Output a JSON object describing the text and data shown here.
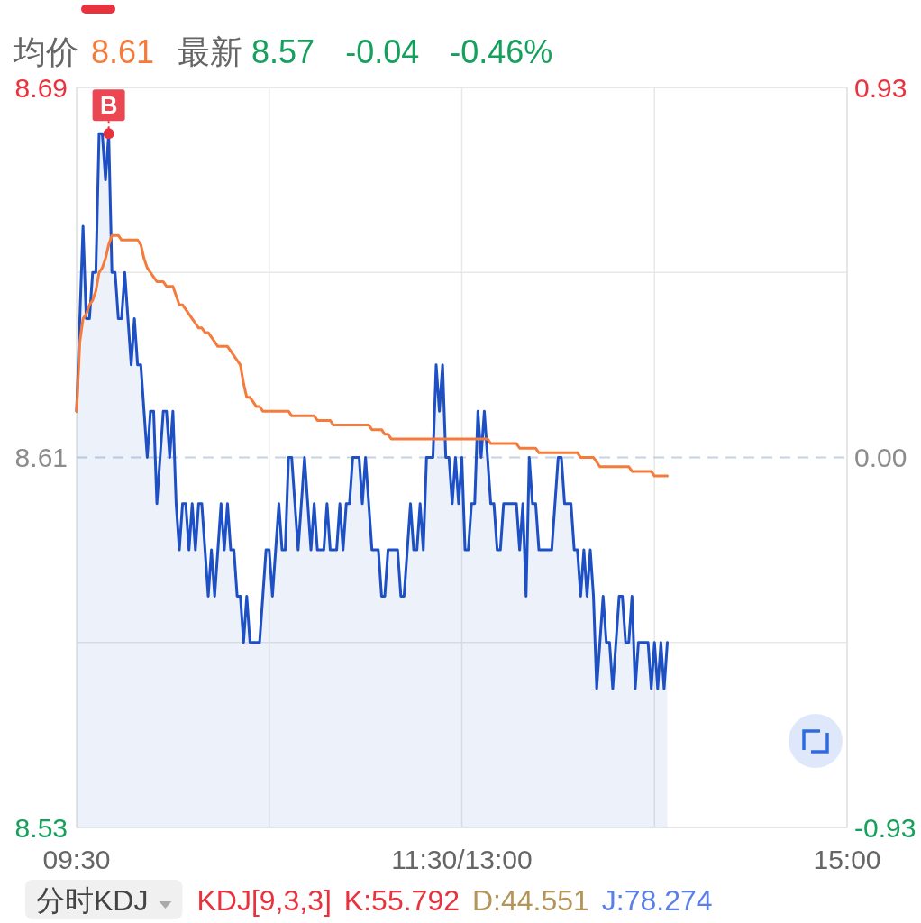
{
  "chart_data": {
    "type": "line",
    "categories": [
      "09:30",
      null,
      null,
      null,
      null,
      null,
      null,
      null,
      null,
      null,
      null,
      null,
      null,
      null,
      null,
      null,
      null,
      null,
      null,
      null,
      null,
      null,
      null,
      null,
      null,
      null,
      null,
      null,
      null,
      null,
      null,
      null,
      null,
      null,
      null,
      null,
      null,
      null,
      null,
      null,
      null,
      null,
      null,
      null,
      null,
      null,
      null,
      null,
      null,
      null,
      null,
      null,
      null,
      null,
      null,
      null,
      null,
      null,
      null,
      null,
      null,
      null,
      null,
      null,
      null,
      null,
      null,
      null,
      null,
      null,
      null,
      null,
      null,
      null,
      null,
      null,
      null,
      null,
      null,
      null,
      null,
      null,
      null,
      null,
      null,
      null,
      null,
      null,
      null,
      null,
      null,
      null,
      null,
      null,
      null,
      null,
      null,
      null,
      null,
      null,
      null,
      null,
      null,
      null,
      null,
      null,
      null,
      null,
      null,
      null,
      null,
      null,
      null,
      null,
      null,
      null,
      null,
      null,
      null,
      null,
      "11:30/13:00",
      null,
      null,
      null,
      null,
      null,
      null,
      null,
      null,
      null,
      null,
      null,
      null,
      null,
      null,
      null,
      null,
      null,
      null,
      null,
      null,
      null,
      null,
      null,
      null,
      null,
      null,
      null,
      null,
      null,
      null,
      null,
      null,
      null,
      null,
      null,
      null,
      null,
      null,
      null,
      null,
      null,
      null,
      null,
      null,
      null,
      null,
      null,
      null,
      null,
      null,
      null,
      null,
      null,
      null,
      null,
      null,
      null,
      null,
      null,
      null,
      null,
      null,
      null,
      null,
      null,
      null,
      null,
      null,
      null,
      null,
      null,
      null,
      null,
      null,
      null,
      null,
      null,
      null,
      null,
      null,
      null,
      null,
      null,
      null,
      null,
      null,
      null,
      null,
      null,
      null,
      null,
      null,
      null,
      null,
      null,
      null,
      null,
      null,
      null,
      null,
      null,
      null,
      null,
      null,
      null,
      null,
      null,
      null,
      null,
      null,
      null,
      null,
      null,
      null,
      null,
      null,
      null,
      null,
      null,
      "15:00"
    ],
    "series": [
      {
        "type": "area",
        "color": "#1d50c4",
        "values": [
          8.62,
          8.64,
          8.66,
          8.64,
          8.64,
          8.65,
          8.65,
          8.68,
          8.68,
          8.67,
          8.68,
          8.65,
          8.65,
          8.64,
          8.64,
          8.65,
          8.64,
          8.63,
          8.64,
          8.63,
          8.63,
          8.62,
          8.61,
          8.62,
          8.62,
          8.6,
          8.61,
          8.62,
          8.62,
          8.61,
          8.62,
          8.6,
          8.59,
          8.6,
          8.6,
          8.59,
          8.6,
          8.59,
          8.6,
          8.6,
          8.59,
          8.58,
          8.59,
          8.58,
          8.59,
          8.6,
          8.59,
          8.6,
          8.59,
          8.59,
          8.58,
          8.58,
          8.57,
          8.58,
          8.57,
          8.57,
          8.57,
          8.57,
          8.58,
          8.59,
          8.59,
          8.58,
          8.59,
          8.6,
          8.59,
          8.59,
          8.61,
          8.61,
          8.6,
          8.59,
          8.6,
          8.61,
          8.6,
          8.59,
          8.6,
          8.59,
          8.59,
          8.59,
          8.6,
          8.59,
          8.59,
          8.59,
          8.6,
          8.59,
          8.6,
          8.6,
          8.61,
          8.61,
          8.61,
          8.6,
          8.61,
          8.6,
          8.59,
          8.59,
          8.59,
          8.58,
          8.58,
          8.59,
          8.59,
          8.59,
          8.59,
          8.58,
          8.58,
          8.59,
          8.6,
          8.59,
          8.59,
          8.6,
          8.59,
          8.61,
          8.61,
          8.61,
          8.63,
          8.62,
          8.63,
          8.61,
          8.61,
          8.6,
          8.61,
          8.6,
          8.61,
          8.59,
          8.59,
          8.6,
          8.6,
          8.62,
          8.61,
          8.62,
          8.61,
          8.6,
          8.6,
          8.59,
          8.59,
          8.6,
          8.6,
          8.6,
          8.6,
          8.6,
          8.59,
          8.6,
          8.58,
          8.61,
          8.6,
          8.6,
          8.59,
          8.59,
          8.59,
          8.59,
          8.59,
          8.6,
          8.61,
          8.61,
          8.6,
          8.6,
          8.6,
          8.59,
          8.59,
          8.58,
          8.59,
          8.58,
          8.59,
          8.58,
          8.56,
          8.57,
          8.58,
          8.57,
          8.57,
          8.56,
          8.57,
          8.58,
          8.58,
          8.57,
          8.57,
          8.58,
          8.56,
          8.57,
          8.57,
          8.57,
          8.57,
          8.56,
          8.57,
          8.56,
          8.57,
          8.56,
          8.57,
          null,
          null,
          null,
          null,
          null,
          null,
          null,
          null,
          null,
          null,
          null,
          null,
          null,
          null,
          null,
          null,
          null,
          null,
          null,
          null,
          null,
          null,
          null,
          null,
          null,
          null,
          null,
          null,
          null,
          null,
          null,
          null,
          null,
          null,
          null,
          null,
          null,
          null,
          null,
          null,
          null,
          null,
          null,
          null,
          null,
          null,
          null,
          null,
          null,
          null,
          null,
          null,
          null,
          null,
          null,
          null
        ]
      },
      {
        "color": "#f47b3b",
        "values": [
          8.62,
          8.635,
          8.64,
          8.641,
          8.643,
          8.644,
          8.646,
          8.65,
          8.651,
          8.653,
          8.656,
          8.658,
          8.658,
          8.658,
          8.657,
          8.657,
          8.657,
          8.657,
          8.657,
          8.657,
          8.656,
          8.653,
          8.651,
          8.65,
          8.649,
          8.648,
          8.648,
          8.648,
          8.647,
          8.647,
          8.647,
          8.645,
          8.643,
          8.643,
          8.642,
          8.641,
          8.64,
          8.639,
          8.638,
          8.638,
          8.637,
          8.637,
          8.636,
          8.635,
          8.634,
          8.634,
          8.634,
          8.634,
          8.633,
          8.632,
          8.631,
          8.63,
          8.626,
          8.623,
          8.623,
          8.622,
          8.621,
          8.621,
          8.62,
          8.62,
          8.62,
          8.62,
          8.62,
          8.62,
          8.62,
          8.62,
          8.62,
          8.619,
          8.619,
          8.619,
          8.619,
          8.619,
          8.619,
          8.619,
          8.619,
          8.618,
          8.618,
          8.618,
          8.618,
          8.618,
          8.617,
          8.617,
          8.617,
          8.617,
          8.617,
          8.617,
          8.617,
          8.617,
          8.617,
          8.617,
          8.617,
          8.617,
          8.616,
          8.616,
          8.616,
          8.616,
          8.615,
          8.615,
          8.614,
          8.614,
          8.614,
          8.614,
          8.614,
          8.614,
          8.614,
          8.614,
          8.614,
          8.614,
          8.614,
          8.614,
          8.614,
          8.614,
          8.614,
          8.614,
          8.614,
          8.614,
          8.614,
          8.614,
          8.614,
          8.614,
          8.614,
          8.614,
          8.614,
          8.614,
          8.614,
          8.614,
          8.614,
          8.614,
          8.614,
          8.613,
          8.613,
          8.613,
          8.613,
          8.613,
          8.613,
          8.613,
          8.613,
          8.613,
          8.612,
          8.612,
          8.612,
          8.612,
          8.612,
          8.612,
          8.611,
          8.611,
          8.611,
          8.611,
          8.611,
          8.611,
          8.611,
          8.611,
          8.611,
          8.611,
          8.611,
          8.611,
          8.611,
          8.61,
          8.61,
          8.61,
          8.61,
          8.61,
          8.609,
          8.608,
          8.608,
          8.608,
          8.608,
          8.608,
          8.608,
          8.608,
          8.608,
          8.608,
          8.608,
          8.607,
          8.607,
          8.607,
          8.607,
          8.607,
          8.607,
          8.607,
          8.606,
          8.606,
          8.606,
          8.606,
          8.606,
          null,
          null,
          null,
          null,
          null,
          null,
          null,
          null,
          null,
          null,
          null,
          null,
          null,
          null,
          null,
          null,
          null,
          null,
          null,
          null,
          null,
          null,
          null,
          null,
          null,
          null,
          null,
          null,
          null,
          null,
          null,
          null,
          null,
          null,
          null,
          null,
          null,
          null,
          null,
          null,
          null,
          null,
          null,
          null,
          null,
          null,
          null,
          null,
          null,
          null,
          null,
          null,
          null,
          null,
          null,
          null
        ]
      }
    ],
    "ylim": [
      8.53,
      8.69
    ],
    "yticks": [
      8.53,
      {
        "value": 8.57,
        "label": null
      },
      8.61,
      {
        "value": 8.65,
        "label": null
      },
      8.69
    ],
    "y2lim": [
      -0.93,
      0.93
    ],
    "y2ticks": [
      -0.93,
      {
        "value": 0,
        "label": "0.00"
      },
      0.93
    ],
    "grid": true,
    "ref_lines": [
      {
        "axis": "y",
        "value": 8.61,
        "line_style": "dashed",
        "color": "#c6d3e4"
      }
    ],
    "annotations": [
      "均价",
      "8.61",
      "最新",
      "8.57",
      "-0.04",
      "-0.46%",
      {
        "text": "B",
        "y": 8.68
      },
      "分时KDJ",
      "KDJ[9,3,3]",
      "K:55.792",
      "D:44.551",
      "J:78.274"
    ]
  }
}
